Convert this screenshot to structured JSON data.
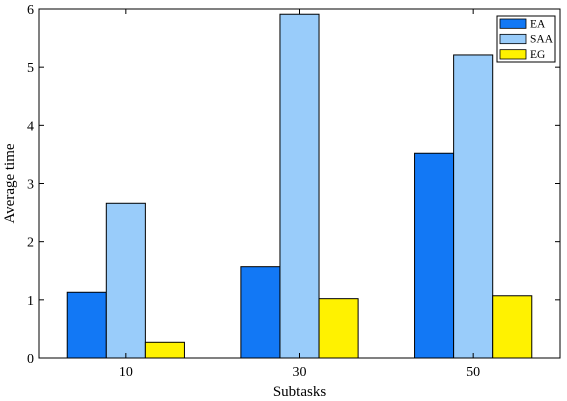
{
  "chart_data": {
    "type": "bar",
    "categories": [
      "10",
      "30",
      "50"
    ],
    "series": [
      {
        "name": "EA",
        "values": [
          1.13,
          1.57,
          3.52
        ],
        "color": "#1278F5"
      },
      {
        "name": "SAA",
        "values": [
          2.66,
          5.91,
          5.21
        ],
        "color": "#99CCFA"
      },
      {
        "name": "EG",
        "values": [
          0.27,
          1.02,
          1.07
        ],
        "color": "#FFF200"
      }
    ],
    "xlabel": "Subtasks",
    "ylabel": "Average time",
    "ylim": [
      0,
      6
    ],
    "yticks": [
      0,
      1,
      2,
      3,
      4,
      5,
      6
    ],
    "grid": false,
    "legend_position": "top-right"
  }
}
